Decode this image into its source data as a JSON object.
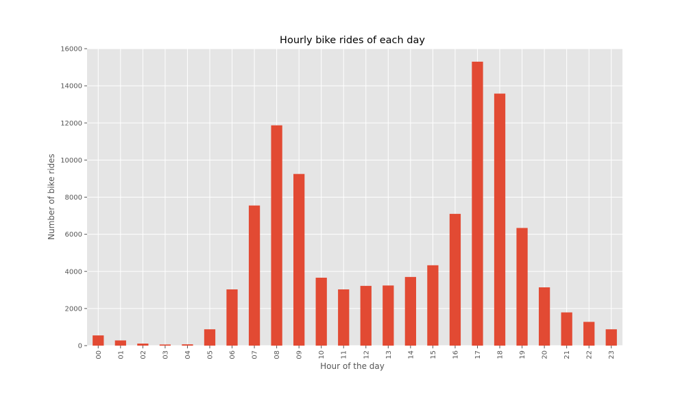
{
  "chart_data": {
    "type": "bar",
    "title": "Hourly bike rides of each day",
    "xlabel": "Hour of the day",
    "ylabel": "Number of bike rides",
    "categories": [
      "00",
      "01",
      "02",
      "03",
      "04",
      "05",
      "06",
      "07",
      "08",
      "09",
      "10",
      "11",
      "12",
      "13",
      "14",
      "15",
      "16",
      "17",
      "18",
      "19",
      "20",
      "21",
      "22",
      "23"
    ],
    "values": [
      550,
      280,
      110,
      60,
      70,
      880,
      3030,
      7550,
      11870,
      9250,
      3660,
      3030,
      3220,
      3240,
      3700,
      4330,
      7100,
      15300,
      13580,
      6340,
      3140,
      1790,
      1280,
      880
    ],
    "ylim": [
      0,
      16000
    ],
    "yticks": [
      0,
      2000,
      4000,
      6000,
      8000,
      10000,
      12000,
      14000,
      16000
    ],
    "grid": true,
    "legend": "none",
    "colors": {
      "bar": "#E24A33",
      "plot_bg": "#E5E5E5",
      "grid": "#FFFFFF",
      "text": "#555555"
    }
  }
}
